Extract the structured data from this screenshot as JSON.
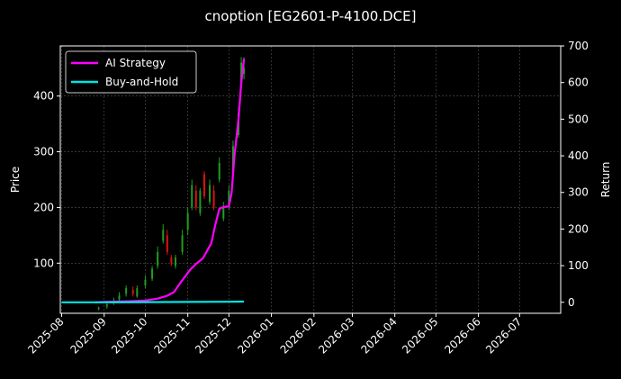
{
  "chart_data": {
    "type": "line",
    "title": "cnoption [EG2601-P-4100.DCE]",
    "xlabel": "",
    "ylabel": "Price",
    "ylabel_right": "Return",
    "x_ticks": [
      "2025-08",
      "2025-09",
      "2025-10",
      "2025-11",
      "2025-12",
      "2026-01",
      "2026-02",
      "2026-03",
      "2026-04",
      "2026-05",
      "2026-06",
      "2026-07"
    ],
    "x_range": [
      "2025-07-31",
      "2026-07-31"
    ],
    "ylim_left": [
      10,
      490
    ],
    "yticks_left": [
      100,
      200,
      300,
      400
    ],
    "ylim_right": [
      -30,
      700
    ],
    "yticks_right": [
      0,
      100,
      200,
      300,
      400,
      500,
      600,
      700
    ],
    "grid": true,
    "legend_position": "top-left",
    "colors": {
      "background": "#000000",
      "strategy": "#ff00ff",
      "buy_hold": "#00e5e5",
      "candle_up": "#1f9e1f",
      "candle_down": "#e01010",
      "grid": "#555555"
    },
    "series": [
      {
        "name": "AI Strategy",
        "axis": "right",
        "x": [
          "2025-08-25",
          "2025-09-01",
          "2025-09-10",
          "2025-09-20",
          "2025-10-01",
          "2025-10-10",
          "2025-10-17",
          "2025-10-22",
          "2025-10-27",
          "2025-11-03",
          "2025-11-07",
          "2025-11-12",
          "2025-11-18",
          "2025-11-21",
          "2025-11-24",
          "2025-11-27",
          "2025-12-01",
          "2025-12-03",
          "2025-12-05",
          "2025-12-08",
          "2025-12-10",
          "2025-12-12"
        ],
        "values": [
          0,
          1,
          2,
          3,
          5,
          10,
          18,
          28,
          55,
          90,
          105,
          120,
          160,
          210,
          255,
          260,
          262,
          300,
          400,
          500,
          600,
          665
        ]
      },
      {
        "name": "Buy-and-Hold",
        "axis": "right",
        "x": [
          "2025-08-01",
          "2025-09-01",
          "2025-10-01",
          "2025-11-01",
          "2025-12-01",
          "2025-12-12"
        ],
        "values": [
          0,
          0,
          0.5,
          1,
          1.5,
          2
        ]
      }
    ],
    "candles": {
      "axis": "left",
      "x": [
        "2025-08-28",
        "2025-09-03",
        "2025-09-08",
        "2025-09-12",
        "2025-09-17",
        "2025-09-22",
        "2025-09-25",
        "2025-10-01",
        "2025-10-06",
        "2025-10-10",
        "2025-10-14",
        "2025-10-17",
        "2025-10-20",
        "2025-10-23",
        "2025-10-28",
        "2025-11-01",
        "2025-11-04",
        "2025-11-07",
        "2025-11-10",
        "2025-11-13",
        "2025-11-17",
        "2025-11-20",
        "2025-11-24",
        "2025-11-27",
        "2025-12-01",
        "2025-12-04",
        "2025-12-08",
        "2025-12-10",
        "2025-12-12"
      ],
      "open": [
        18,
        22,
        28,
        35,
        45,
        52,
        40,
        60,
        72,
        95,
        140,
        150,
        110,
        95,
        120,
        160,
        200,
        230,
        190,
        260,
        210,
        230,
        250,
        180,
        200,
        260,
        330,
        420,
        440
      ],
      "close": [
        20,
        26,
        32,
        42,
        55,
        45,
        55,
        70,
        90,
        120,
        160,
        120,
        100,
        110,
        150,
        190,
        240,
        200,
        230,
        220,
        240,
        200,
        280,
        200,
        230,
        310,
        370,
        460,
        450
      ],
      "high": [
        22,
        30,
        38,
        48,
        60,
        58,
        60,
        78,
        95,
        130,
        170,
        160,
        115,
        115,
        160,
        200,
        250,
        240,
        235,
        265,
        250,
        240,
        290,
        210,
        240,
        320,
        380,
        470,
        470
      ],
      "low": [
        15,
        18,
        25,
        30,
        40,
        40,
        38,
        55,
        68,
        90,
        135,
        115,
        95,
        90,
        115,
        150,
        195,
        195,
        185,
        215,
        205,
        195,
        245,
        175,
        195,
        255,
        325,
        415,
        430
      ]
    }
  }
}
